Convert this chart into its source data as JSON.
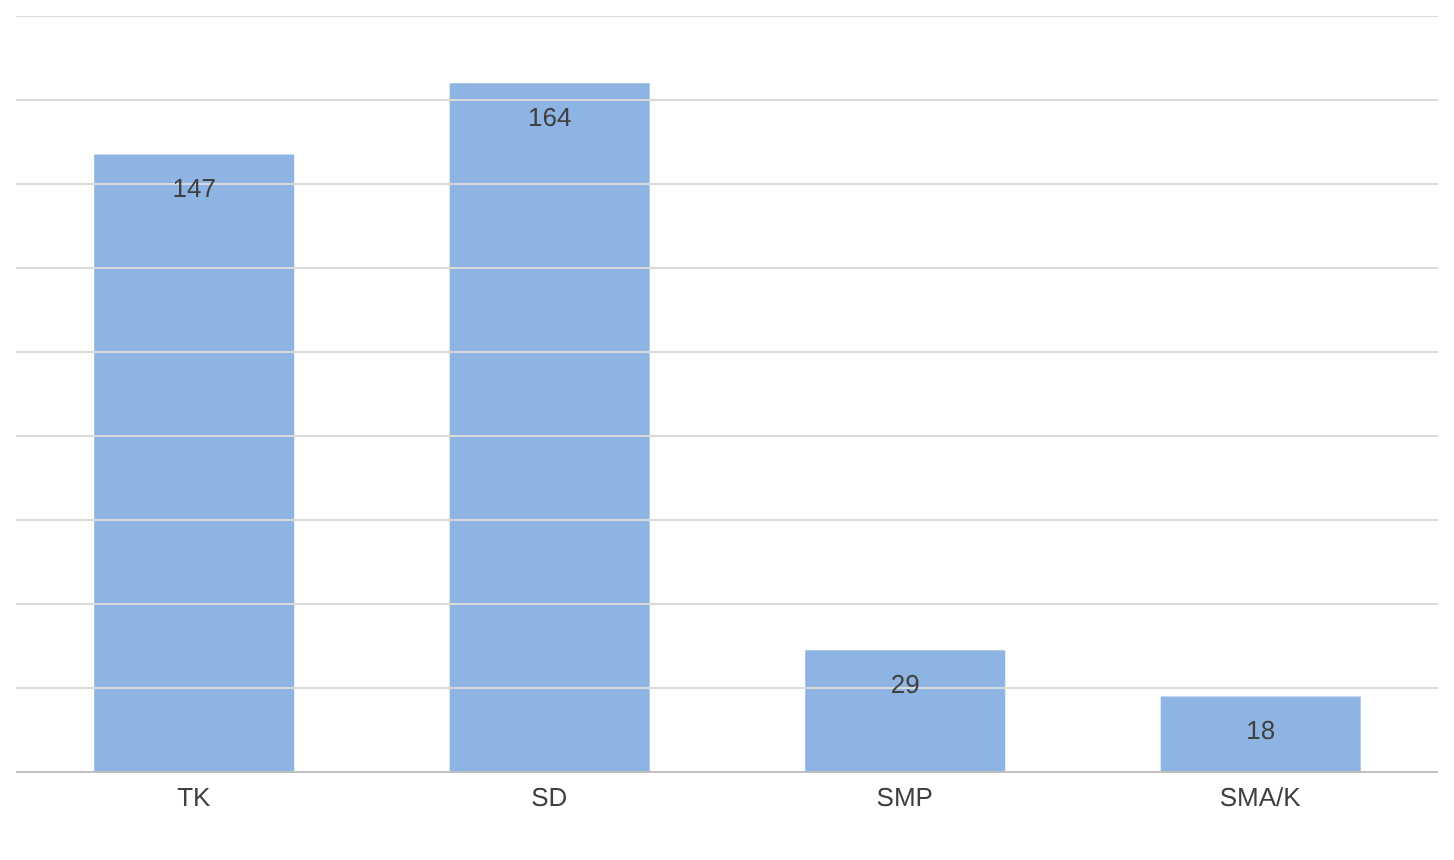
{
  "chart_data": {
    "type": "bar",
    "categories": [
      "TK",
      "SD",
      "SMP",
      "SMA/K"
    ],
    "values": [
      147,
      164,
      29,
      18
    ],
    "color": "#8db4e2",
    "data_labels": true,
    "ylim": [
      0,
      180
    ],
    "yticks": [
      {
        "value": 0,
        "label": null
      },
      {
        "value": 20,
        "label": null
      },
      {
        "value": 40,
        "label": null
      },
      {
        "value": 60,
        "label": null
      },
      {
        "value": 80,
        "label": null
      },
      {
        "value": 100,
        "label": null
      },
      {
        "value": 120,
        "label": null
      },
      {
        "value": 140,
        "label": null
      },
      {
        "value": 160,
        "label": null
      },
      {
        "value": 180,
        "label": null
      }
    ],
    "tick_labels": "x",
    "grid": "y"
  }
}
